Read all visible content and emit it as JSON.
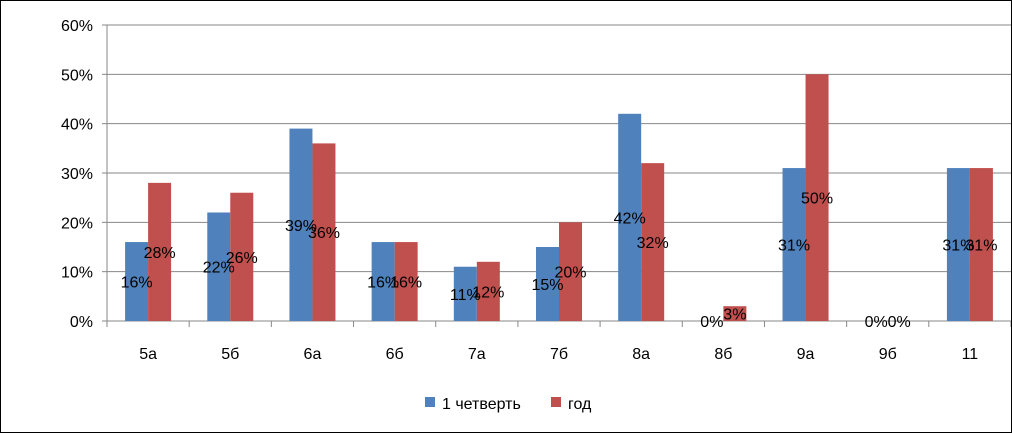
{
  "chart_data": {
    "type": "bar",
    "categories": [
      "5а",
      "5б",
      "6а",
      "6б",
      "7а",
      "7б",
      "8а",
      "8б",
      "9а",
      "9б",
      "11"
    ],
    "series": [
      {
        "name": "1 четверть",
        "color": "#4f81bd",
        "values": [
          16,
          22,
          39,
          16,
          11,
          15,
          42,
          0,
          31,
          0,
          31
        ],
        "labels": [
          "16%",
          "22%",
          "39%",
          "16%",
          "11%",
          "15%",
          "42%",
          "0%",
          "31%",
          "0%",
          "31%"
        ]
      },
      {
        "name": "год",
        "color": "#c0504d",
        "values": [
          28,
          26,
          36,
          16,
          12,
          20,
          32,
          3,
          50,
          0,
          31
        ],
        "labels": [
          "28%",
          "26%",
          "36%",
          "16%",
          "12%",
          "20%",
          "32%",
          "3%",
          "50%",
          "0%",
          "31%"
        ]
      }
    ],
    "ylim": [
      0,
      60
    ],
    "yticks": [
      "0%",
      "10%",
      "20%",
      "30%",
      "40%",
      "50%",
      "60%"
    ],
    "grid": true,
    "legend_position": "bottom"
  }
}
